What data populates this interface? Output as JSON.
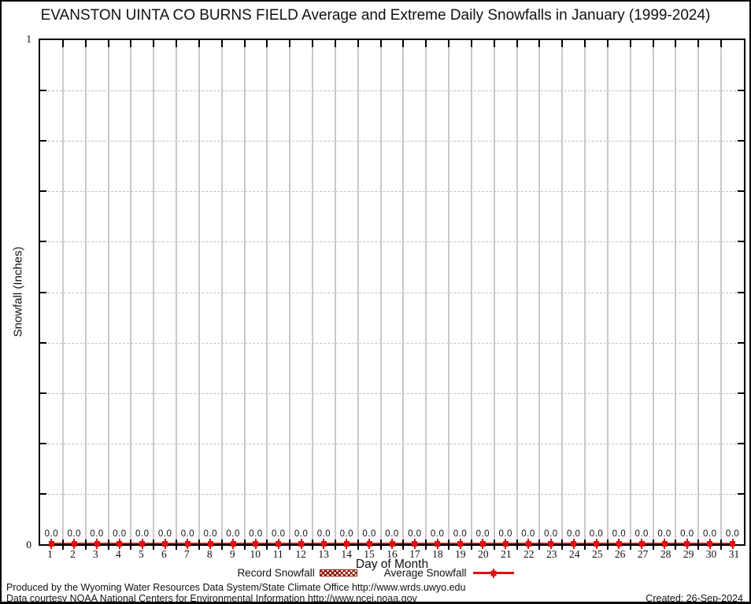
{
  "title": "EVANSTON UINTA CO BURNS FIELD Average and Extreme Daily Snowfalls in January (1999-2024)",
  "colors": {
    "average_line": "#e10f0f",
    "record_fill": "#8c1504",
    "vertical_grid": "#c9c9c9",
    "horizontal_grid": "#c2c2c2"
  },
  "y_axis": {
    "label": "Snowfall (Inches)",
    "top_tick": "1",
    "bottom_tick": "0"
  },
  "x_axis": {
    "label": "Day of Month"
  },
  "legend": {
    "record_label": "Record Snowfall",
    "average_label": "Average Snowfall"
  },
  "footer": {
    "line1": "Produced by the Wyoming Water Resources Data System/State Climate Office http://www.wrds.uwyo.edu",
    "line2": "Data courtesy NOAA National Centers for Environmental Information http://www.ncei.noaa.gov",
    "created": "Created: 26-Sep-2024"
  },
  "chart_data": {
    "type": "line",
    "title": "EVANSTON UINTA CO BURNS FIELD Average and Extreme Daily Snowfalls in January (1999-2024)",
    "xlabel": "Day of Month",
    "ylabel": "Snowfall (Inches)",
    "xlim": [
      0.5,
      31.5
    ],
    "ylim": [
      0,
      1
    ],
    "y_tick_labels": [
      "0",
      "1"
    ],
    "y_minor_tick_step": 0.1,
    "grid": true,
    "legend_position": "bottom",
    "categories": [
      "1",
      "2",
      "3",
      "4",
      "5",
      "6",
      "7",
      "8",
      "9",
      "10",
      "11",
      "12",
      "13",
      "14",
      "15",
      "16",
      "17",
      "18",
      "19",
      "20",
      "21",
      "22",
      "23",
      "24",
      "25",
      "26",
      "27",
      "28",
      "29",
      "30",
      "31"
    ],
    "series": [
      {
        "name": "Record Snowfall",
        "type": "bar",
        "color": "#8c1504",
        "values": [
          0,
          0,
          0,
          0,
          0,
          0,
          0,
          0,
          0,
          0,
          0,
          0,
          0,
          0,
          0,
          0,
          0,
          0,
          0,
          0,
          0,
          0,
          0,
          0,
          0,
          0,
          0,
          0,
          0,
          0,
          0
        ]
      },
      {
        "name": "Average Snowfall",
        "type": "line",
        "color": "#e10f0f",
        "values": [
          0,
          0,
          0,
          0,
          0,
          0,
          0,
          0,
          0,
          0,
          0,
          0,
          0,
          0,
          0,
          0,
          0,
          0,
          0,
          0,
          0,
          0,
          0,
          0,
          0,
          0,
          0,
          0,
          0,
          0,
          0
        ]
      }
    ],
    "point_labels": [
      "0.0",
      "0.0",
      "0.0",
      "0.0",
      "0.0",
      "0.0",
      "0.0",
      "0.0",
      "0.0",
      "0.0",
      "0.0",
      "0.0",
      "0.0",
      "0.0",
      "0.0",
      "0.0",
      "0.0",
      "0.0",
      "0.0",
      "0.0",
      "0.0",
      "0.0",
      "0.0",
      "0.0",
      "0.0",
      "0.0",
      "0.0",
      "0.0",
      "0.0",
      "0.0",
      "0.0"
    ]
  }
}
